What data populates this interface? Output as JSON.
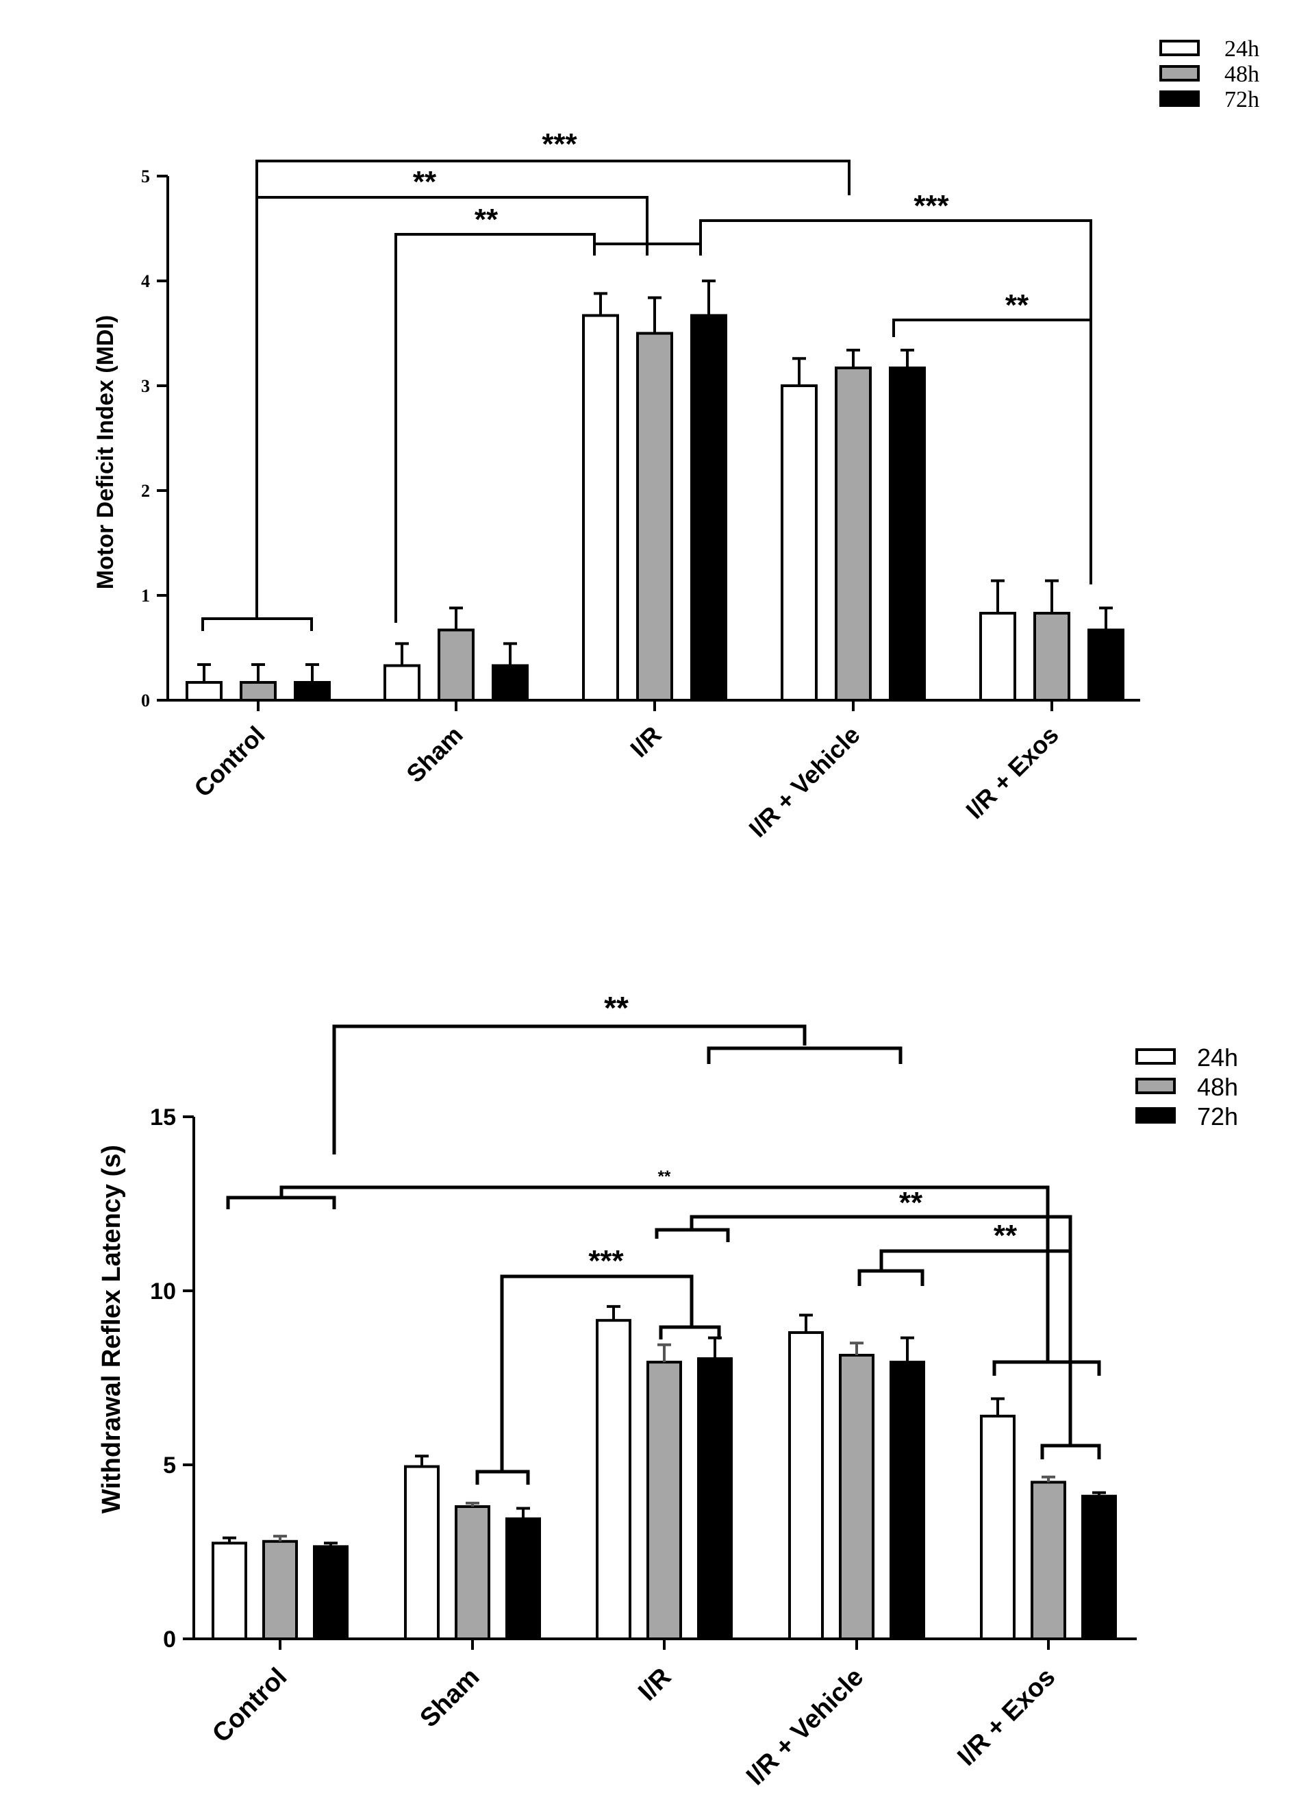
{
  "colors": {
    "24h": "#ffffff",
    "48h": "#a6a6a6",
    "72h": "#000000",
    "axis": "#000000"
  },
  "chart_data": [
    {
      "type": "bar",
      "title": "",
      "xlabel": "",
      "ylabel": "Motor Deficit Index (MDI)",
      "ylim": [
        0,
        5
      ],
      "yticks": [
        "0",
        "1",
        "2",
        "3",
        "4",
        "5"
      ],
      "categories": [
        "Control",
        "Sham",
        "I/R",
        "I/R + Vehicle",
        "I/R + Exos"
      ],
      "legend": [
        "24h",
        "48h",
        "72h"
      ],
      "legend_position": "top-right",
      "series": [
        {
          "name": "24h",
          "values": [
            0.17,
            0.33,
            3.67,
            3.0,
            0.83
          ],
          "errors": [
            0.17,
            0.21,
            0.21,
            0.26,
            0.31
          ]
        },
        {
          "name": "48h",
          "values": [
            0.17,
            0.67,
            3.5,
            3.17,
            0.83
          ],
          "errors": [
            0.17,
            0.21,
            0.34,
            0.17,
            0.31
          ]
        },
        {
          "name": "72h",
          "values": [
            0.17,
            0.33,
            3.67,
            3.17,
            0.67
          ],
          "errors": [
            0.17,
            0.21,
            0.33,
            0.17,
            0.21
          ]
        }
      ],
      "annotations": [
        "***",
        "**",
        "**",
        "***",
        "**"
      ]
    },
    {
      "type": "bar",
      "title": "",
      "xlabel": "",
      "ylabel": "Withdrawal Reflex Latency (s)",
      "ylim": [
        0,
        15
      ],
      "yticks": [
        "0",
        "5",
        "10",
        "15"
      ],
      "categories": [
        "Control",
        "Sham",
        "I/R",
        "I/R + Vehicle",
        "I/R + Exos"
      ],
      "legend": [
        "24h",
        "48h",
        "72h"
      ],
      "legend_position": "top-right",
      "series": [
        {
          "name": "24h",
          "values": [
            2.75,
            4.95,
            9.15,
            8.8,
            6.4
          ],
          "errors": [
            0.15,
            0.3,
            0.4,
            0.5,
            0.5
          ]
        },
        {
          "name": "48h",
          "values": [
            2.8,
            3.8,
            7.95,
            8.15,
            4.5
          ],
          "errors": [
            0.15,
            0.1,
            0.5,
            0.35,
            0.15
          ]
        },
        {
          "name": "72h",
          "values": [
            2.65,
            3.45,
            8.05,
            7.95,
            4.1
          ],
          "errors": [
            0.1,
            0.3,
            0.6,
            0.7,
            0.1
          ]
        }
      ],
      "annotations": [
        "**",
        "**",
        "**",
        "***",
        "**"
      ]
    }
  ]
}
